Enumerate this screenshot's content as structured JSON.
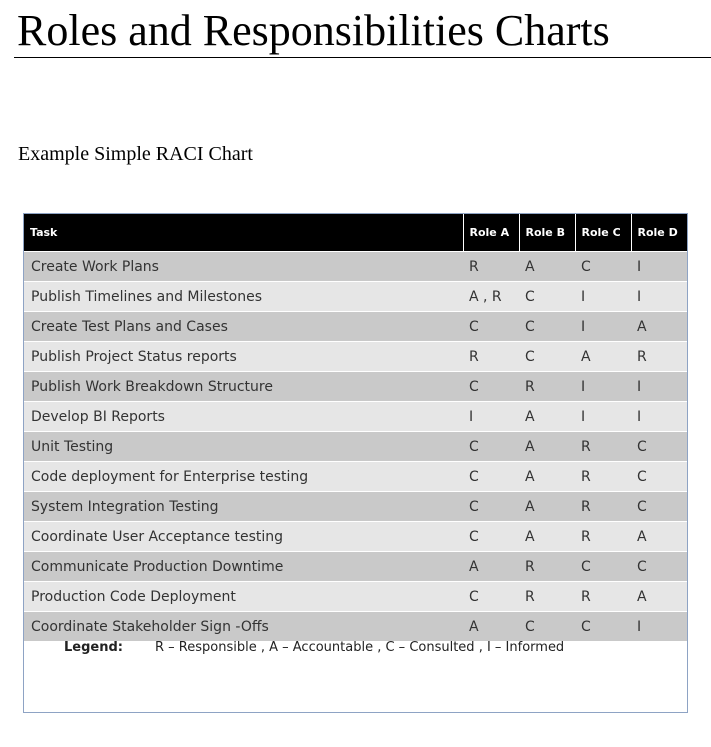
{
  "document": {
    "title": "Roles and Responsibilities Charts",
    "subtitle": "Example Simple RACI Chart"
  },
  "table": {
    "headers": [
      "Task",
      "Role A",
      "Role B",
      "Role C",
      "Role D"
    ],
    "rows": [
      [
        "Create Work Plans",
        "R",
        "A",
        "C",
        "I"
      ],
      [
        "Publish Timelines and Milestones",
        "A , R",
        "C",
        "I",
        "I"
      ],
      [
        "Create Test Plans and Cases",
        "C",
        "C",
        "I",
        "A"
      ],
      [
        "Publish Project Status reports",
        "R",
        "C",
        "A",
        "R"
      ],
      [
        "Publish Work Breakdown Structure",
        "C",
        "R",
        "I",
        "I"
      ],
      [
        "Develop BI Reports",
        "I",
        "A",
        "I",
        "I"
      ],
      [
        "Unit Testing",
        "C",
        "A",
        "R",
        "C"
      ],
      [
        "Code deployment for Enterprise testing",
        "C",
        "A",
        "R",
        "C"
      ],
      [
        "System Integration Testing",
        "C",
        "A",
        "R",
        "C"
      ],
      [
        "Coordinate User Acceptance testing",
        "C",
        "A",
        "R",
        "A"
      ],
      [
        "Communicate Production Downtime",
        "A",
        "R",
        "C",
        "C"
      ],
      [
        "Production Code Deployment",
        "C",
        "R",
        "R",
        "A"
      ],
      [
        "Coordinate Stakeholder Sign -Offs",
        "A",
        "C",
        "C",
        "I"
      ]
    ]
  },
  "legend": {
    "label": "Legend:",
    "text": "R – Responsible , A – Accountable , C – Consulted , I – Informed"
  },
  "colors": {
    "header_bg": "#000000",
    "row_dark": "#c9c9c9",
    "row_light": "#e6e6e6",
    "frame_border": "#8ea3c4"
  }
}
